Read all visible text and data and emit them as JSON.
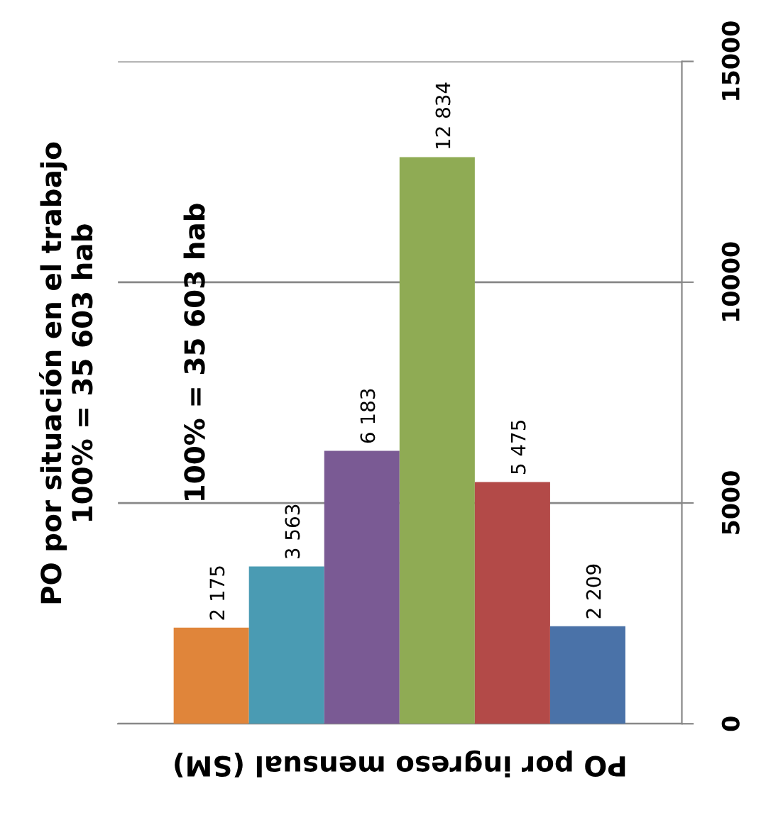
{
  "chart_data": {
    "type": "bar",
    "title": "PO por situación en el trabajo\n100% = 35 603 hab",
    "xlabel": "PO por ingreso mensual (SM)",
    "categories": [
      null,
      null,
      null,
      null,
      null,
      null
    ],
    "values": [
      2175,
      3563,
      6183,
      12834,
      5475,
      2209
    ],
    "colors": [
      "#e0853a",
      "#4a9bb3",
      "#7a5a94",
      "#8fab54",
      "#b34a48",
      "#4a72a8"
    ],
    "value_labels": [
      "2 175",
      "3 563",
      "6 183",
      "12 834",
      "5 475",
      "2 209"
    ],
    "annotations": [
      "100% = 35 603 hab"
    ],
    "ylim": [
      0,
      15000
    ],
    "yticks": [
      0,
      5000,
      10000,
      15000
    ],
    "grid": "y",
    "legend": false
  }
}
